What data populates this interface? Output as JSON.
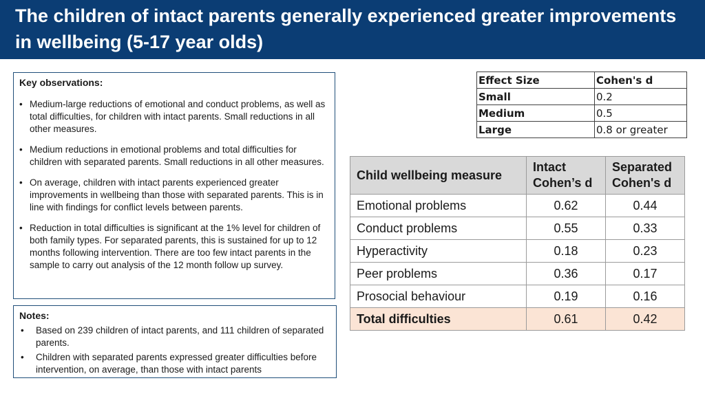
{
  "title": "The children of intact parents generally experienced greater improvements in wellbeing (5-17 year olds)",
  "observations": {
    "heading": "Key observations:",
    "bullets": [
      "Medium-large reductions of emotional and conduct problems, as well as total difficulties, for children with intact parents. Small reductions in all other measures.",
      "Medium reductions in emotional problems and total difficulties for children with separated parents. Small reductions in all other measures.",
      "On average, children with intact parents experienced greater improvements in wellbeing than those with separated parents. This is in line with findings for conflict levels between parents.",
      "Reduction in total difficulties is significant at the 1% level for children of both family types. For separated parents, this is sustained for up to 12 months following intervention. There are too few intact parents in the sample to carry out analysis of the 12 month follow up survey."
    ]
  },
  "notes": {
    "heading": "Notes:",
    "bullets": [
      "Based on 239 children of intact parents, and 111 children of separated parents.",
      "Children with separated parents expressed greater difficulties before intervention, on average, than those with intact parents"
    ]
  },
  "effect_size_table": {
    "headers": [
      "Effect Size",
      "Cohen's d"
    ],
    "rows": [
      [
        "Small",
        "0.2"
      ],
      [
        "Medium",
        "0.5"
      ],
      [
        "Large",
        "0.8 or greater"
      ]
    ]
  },
  "wellbeing_table": {
    "headers": [
      "Child wellbeing measure",
      "Intact Cohen’s d",
      "Separated Cohen's d"
    ],
    "rows": [
      [
        "Emotional problems",
        "0.62",
        "0.44"
      ],
      [
        "Conduct problems",
        "0.55",
        "0.33"
      ],
      [
        "Hyperactivity",
        "0.18",
        "0.23"
      ],
      [
        "Peer problems",
        "0.36",
        "0.17"
      ],
      [
        "Prosocial behaviour",
        "0.19",
        "0.16"
      ],
      [
        "Total difficulties",
        "0.61",
        "0.42"
      ]
    ],
    "highlight_color": "#fbe4d5",
    "header_color": "#d9d9d9"
  },
  "colors": {
    "header_bg": "#0b3d74",
    "box_border": "#1f4e79"
  }
}
